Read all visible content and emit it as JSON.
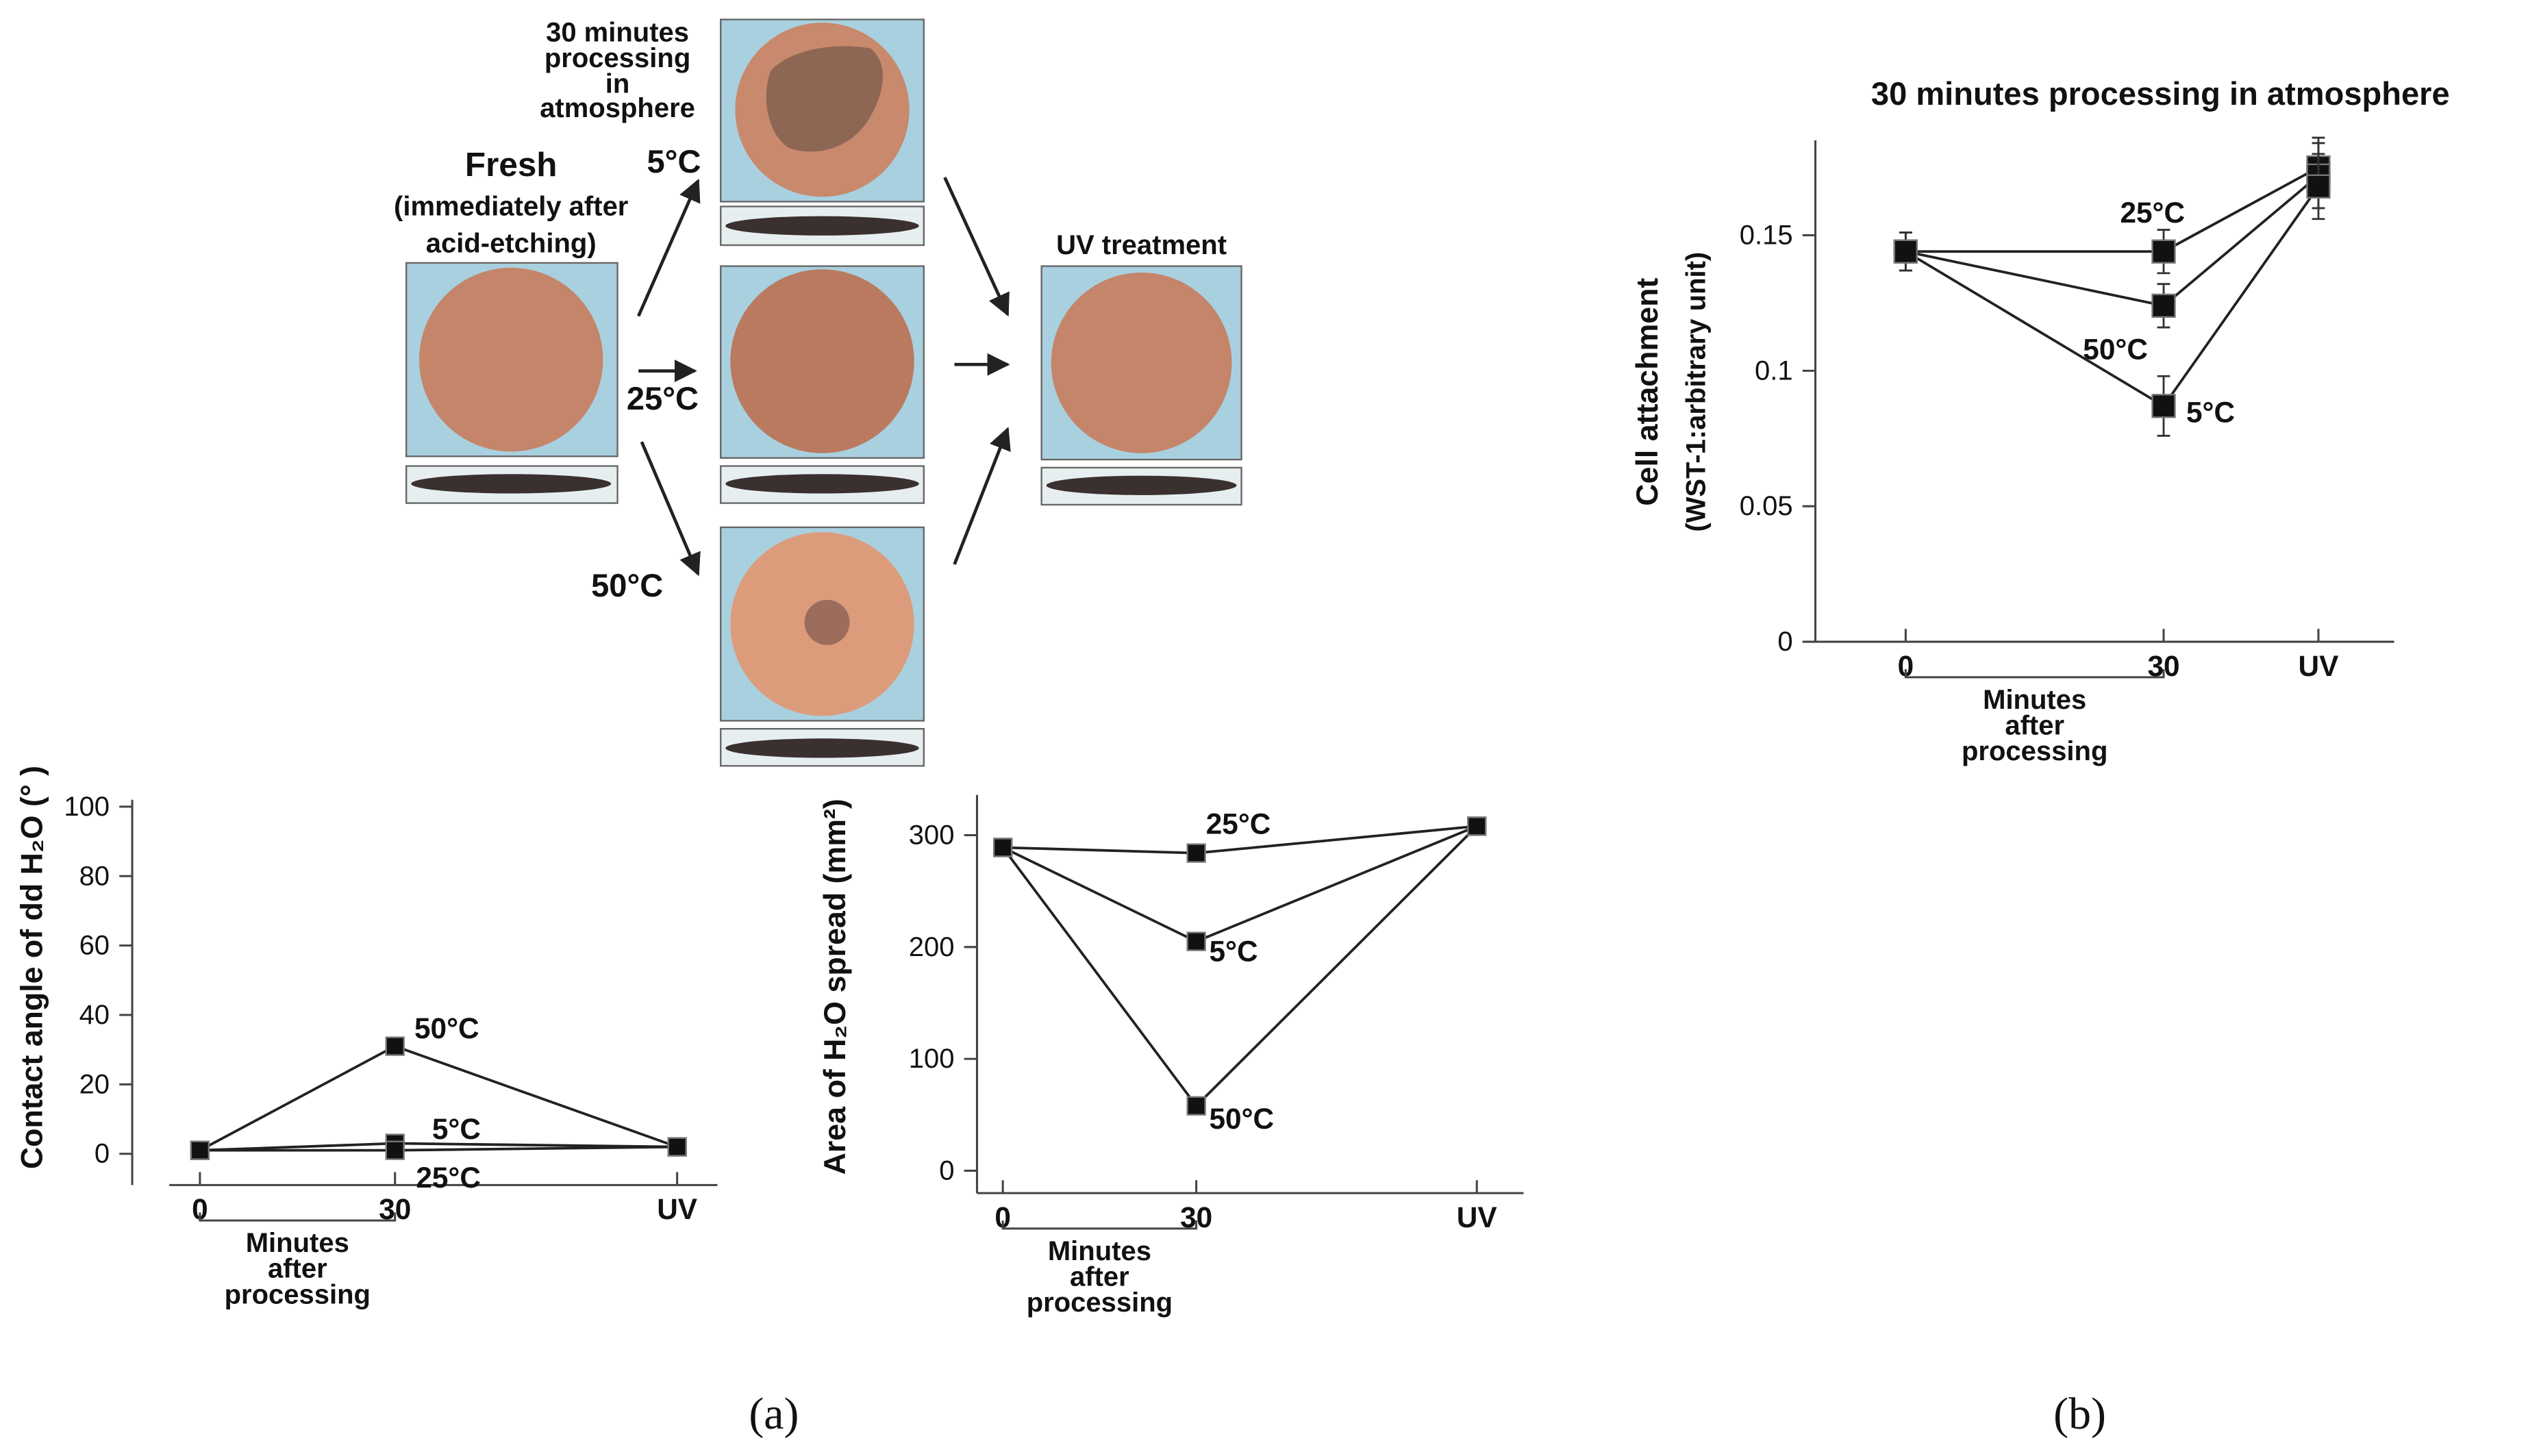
{
  "figure": {
    "processing_note": [
      "30 minutes",
      "processing",
      "in",
      "atmosphere"
    ],
    "fresh": "Fresh",
    "fresh_note": [
      "(immediately after",
      "acid-etching)"
    ],
    "temps": [
      "5°C",
      "25°C",
      "50°C"
    ],
    "uv_label": "UV treatment",
    "panel_a": "(a)",
    "panel_b": "(b)"
  },
  "chart_data": [
    {
      "type": "line",
      "ylabel": [
        "Contact angle of dd H₂O (° )"
      ],
      "categories": [
        "0",
        "30",
        "UV"
      ],
      "xlabel": [
        "Minutes",
        "after",
        "processing"
      ],
      "ylim": [
        -9,
        102
      ],
      "yticks": [
        0,
        20,
        40,
        60,
        80,
        100
      ],
      "color": "#222",
      "series": [
        {
          "name": "50°C",
          "values": [
            1,
            31,
            2
          ]
        },
        {
          "name": "5°C",
          "values": [
            1,
            3,
            2
          ]
        },
        {
          "name": "25°C",
          "values": [
            1,
            1,
            2
          ]
        }
      ]
    },
    {
      "type": "line",
      "ylabel": [
        "Area of H₂O spread (mm²)"
      ],
      "categories": [
        "0",
        "30",
        "UV"
      ],
      "xlabel": [
        "Minutes",
        "after",
        "processing"
      ],
      "ylim": [
        -20,
        336
      ],
      "yticks": [
        0,
        100,
        200,
        300
      ],
      "color": "#222",
      "series": [
        {
          "name": "25°C",
          "values": [
            289,
            284,
            308
          ]
        },
        {
          "name": "5°C",
          "values": [
            289,
            205,
            308
          ]
        },
        {
          "name": "50°C",
          "values": [
            289,
            58,
            308
          ]
        }
      ]
    },
    {
      "type": "line",
      "title": "30 minutes processing in atmosphere",
      "ylabel": [
        "Cell attachment",
        "(WST-1:arbitrary unit)"
      ],
      "categories": [
        "0",
        "30",
        "UV"
      ],
      "xlabel": [
        "Minutes",
        "after",
        "processing"
      ],
      "ylim": [
        0,
        0.185
      ],
      "yticks": [
        0,
        0.05,
        0.1,
        0.15
      ],
      "color": "#222",
      "series": [
        {
          "name": "25°C",
          "values": [
            0.144,
            0.144,
            0.175
          ],
          "errors": [
            0.007,
            0.008,
            0.011
          ]
        },
        {
          "name": "50°C",
          "values": [
            0.144,
            0.124,
            0.172
          ],
          "errors": [
            0.007,
            0.008,
            0.012
          ]
        },
        {
          "name": "5°C",
          "values": [
            0.144,
            0.087,
            0.168
          ],
          "errors": [
            0.007,
            0.011,
            0.012
          ]
        }
      ]
    }
  ]
}
